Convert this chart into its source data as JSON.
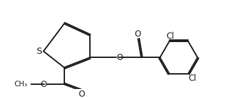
{
  "bg_color": "#ffffff",
  "line_color": "#1a1a1a",
  "lw": 1.4,
  "fs": 8.5,
  "figsize": [
    3.34,
    1.42
  ],
  "dpi": 100,
  "xlim": [
    0,
    3.34
  ],
  "ylim": [
    0,
    1.42
  ]
}
